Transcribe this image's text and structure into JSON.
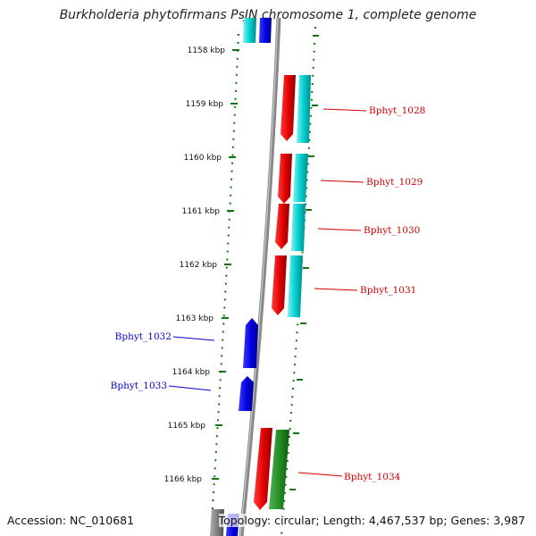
{
  "title": "Burkholderia phytofirmans PsJN chromosome 1, complete genome",
  "accession": "Accession: NC_010681",
  "topology": "Topology: circular; Length: 4,467,537 bp; Genes: 3,987",
  "colors": {
    "forward_gene": "#e60000",
    "reverse_gene": "#0000e6",
    "cds_cyan": "#00c8c8",
    "cds_green": "#228b22",
    "backbone": "#888888",
    "tick": "#117711"
  },
  "ticks": [
    "1158 kbp",
    "1159 kbp",
    "1160 kbp",
    "1161 kbp",
    "1162 kbp",
    "1163 kbp",
    "1164 kbp",
    "1165 kbp",
    "1166 kbp"
  ],
  "genes": [
    {
      "label": "Bphyt_1028",
      "color": "#cc0000"
    },
    {
      "label": "Bphyt_1029",
      "color": "#cc0000"
    },
    {
      "label": "Bphyt_1030",
      "color": "#cc0000"
    },
    {
      "label": "Bphyt_1031",
      "color": "#cc0000"
    },
    {
      "label": "Bphyt_1032",
      "color": "#0000cc"
    },
    {
      "label": "Bphyt_1033",
      "color": "#0000cc"
    },
    {
      "label": "Bphyt_1034",
      "color": "#cc0000"
    }
  ]
}
